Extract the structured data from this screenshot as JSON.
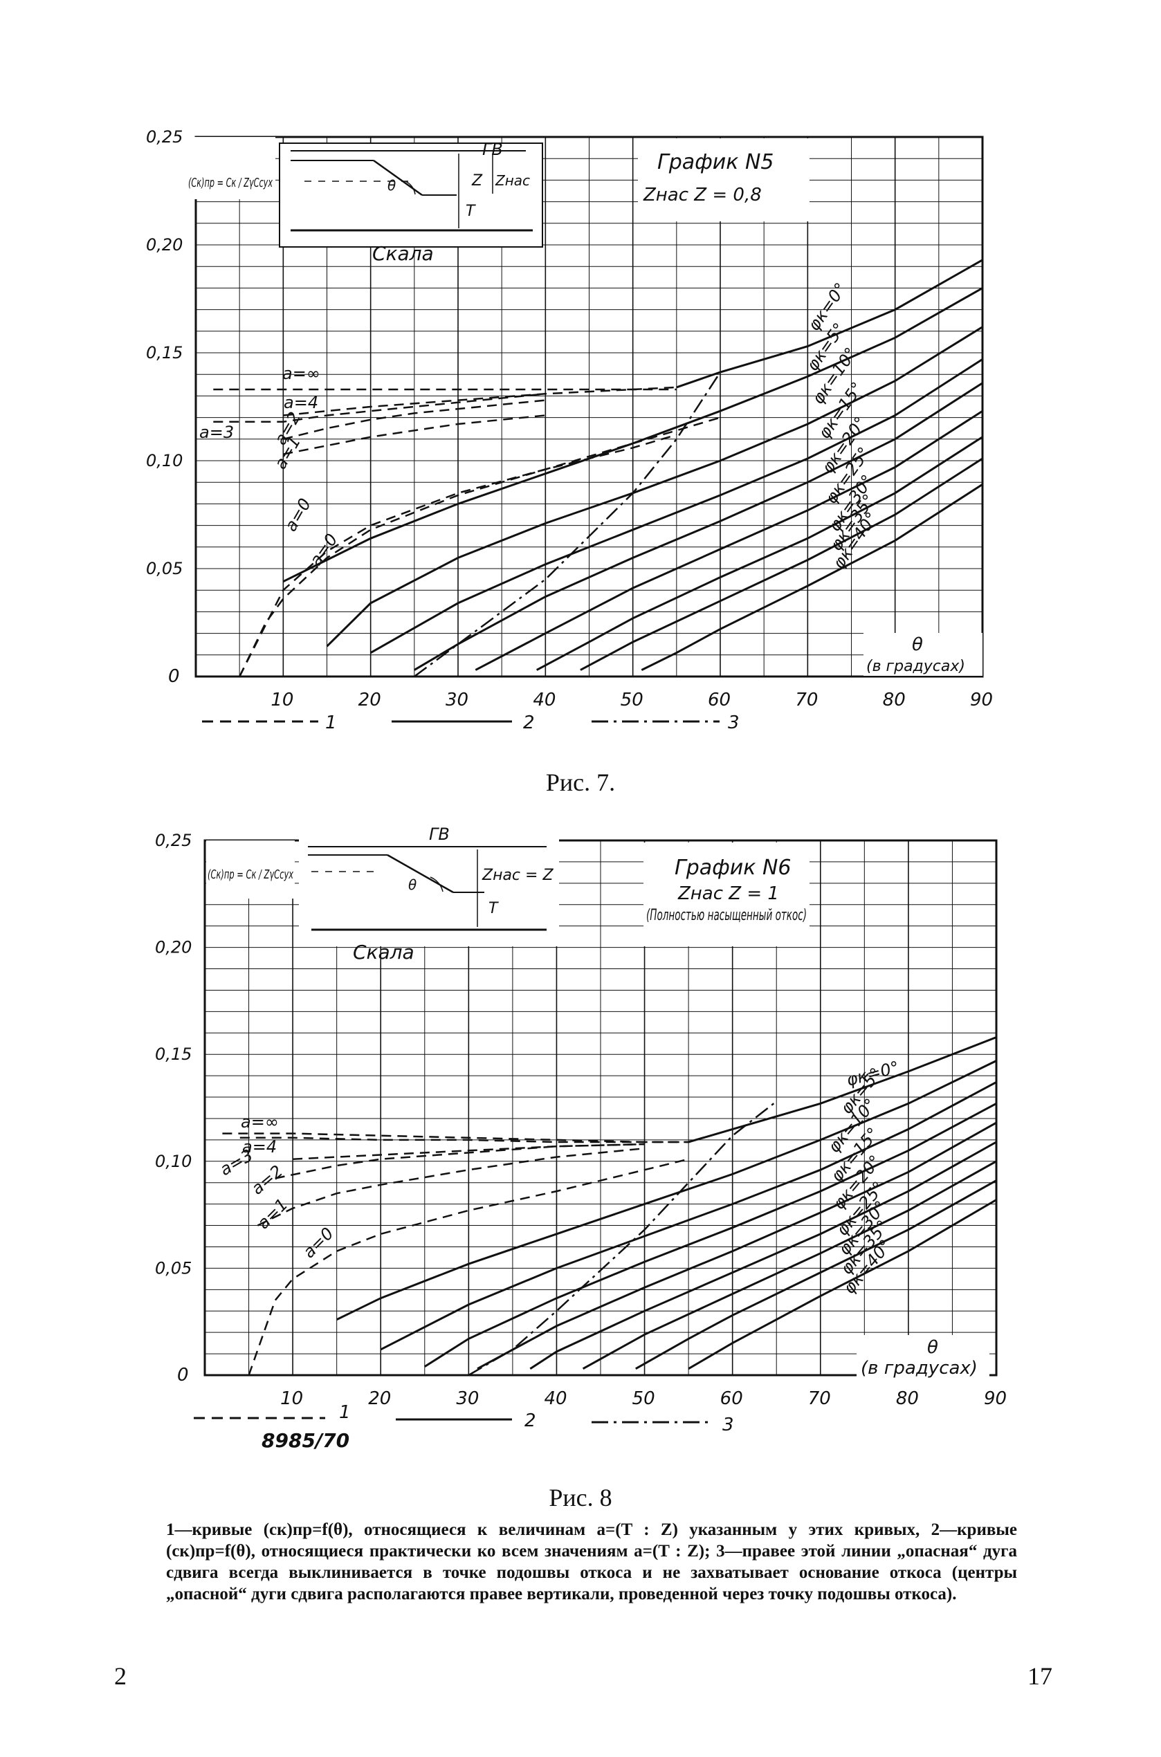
{
  "charts_meta": [
    {
      "caption": "Рис. 7.",
      "title": "График N5",
      "subtitle": "Zнас  Z = 0,8",
      "note": "",
      "ylabel": "(Cк)пр = Cк / ZγCсух",
      "xlabel_top": "θ",
      "xlabel_bottom": "(в градусах)",
      "inset_label": "Скала",
      "inset_marks": [
        "ГВ",
        "Z",
        "Zнас",
        "T",
        "θ"
      ]
    },
    {
      "caption": "Рис. 8",
      "title": "График N6",
      "subtitle": "Zнас  Z = 1",
      "note": "(Полностью насыщенный откос)",
      "ylabel": "(Cк)пр = Cк / ZγCсух",
      "xlabel_top": "θ",
      "xlabel_bottom": "(в градусах)",
      "inset_label": "Скала",
      "inset_marks": [
        "ГВ",
        "Zнас = Z",
        "T",
        "θ"
      ]
    }
  ],
  "legend": [
    {
      "num": "1",
      "style": "dashed"
    },
    {
      "num": "2",
      "style": "solid"
    },
    {
      "num": "3",
      "style": "dashdot"
    }
  ],
  "stamp": "8985/70",
  "caption_text": "1—кривые (cк)пр=f(θ), относящиеся к величинам a=(T : Z) указанным у этих кривых, 2—кривые (cк)пр=f(θ), относящиеся практически ко всем значениям a=(T : Z); 3—правее этой линии „опасная“ дуга сдвига всегда выклинивается в точке подошвы откоса и не захватывает основание откоса (центры „опасной“ дуги сдвига располагаются правее вертикали, проведенной через точку подошвы откоса).",
  "page_left": "2",
  "page_right": "17",
  "colors": {
    "ink": "#111111",
    "paper": "#ffffff"
  },
  "chart_data": [
    {
      "type": "line",
      "title": "График N5",
      "xlim": [
        0,
        90
      ],
      "ylim": [
        0,
        0.25
      ],
      "xticks": [
        10,
        20,
        30,
        40,
        50,
        60,
        70,
        80,
        90
      ],
      "xtick_labels": [
        "10",
        "20",
        "30",
        "40",
        "50",
        "60",
        "70",
        "80",
        "90"
      ],
      "yticks": [
        0,
        0.05,
        0.1,
        0.15,
        0.2,
        0.25
      ],
      "ytick_labels": [
        "0",
        "0,05",
        "0,10",
        "0,15",
        "0,20",
        "0,25"
      ],
      "grid": true,
      "series": [
        {
          "name": "a=∞",
          "kind": "dashed",
          "x": [
            2,
            10,
            20,
            30,
            40,
            50,
            55
          ],
          "y": [
            0.133,
            0.133,
            0.133,
            0.133,
            0.133,
            0.133,
            0.133
          ]
        },
        {
          "name": "a=4",
          "kind": "dashed",
          "x": [
            10,
            15,
            20,
            30,
            40,
            50,
            55
          ],
          "y": [
            0.121,
            0.123,
            0.125,
            0.128,
            0.131,
            0.133,
            0.134
          ]
        },
        {
          "name": "a=3",
          "kind": "dashed",
          "x": [
            2,
            6,
            10,
            15,
            20,
            30,
            40
          ],
          "y": [
            0.118,
            0.118,
            0.118,
            0.121,
            0.123,
            0.127,
            0.131
          ]
        },
        {
          "name": "a=2",
          "kind": "dashed",
          "x": [
            10,
            15,
            20,
            25,
            30,
            40
          ],
          "y": [
            0.11,
            0.115,
            0.119,
            0.122,
            0.124,
            0.128
          ]
        },
        {
          "name": "a=1",
          "kind": "dashed",
          "x": [
            10,
            15,
            20,
            25,
            30,
            40
          ],
          "y": [
            0.103,
            0.107,
            0.111,
            0.114,
            0.117,
            0.121
          ]
        },
        {
          "name": "a=0",
          "kind": "dashed",
          "x": [
            5,
            10,
            15,
            20,
            30,
            40,
            50,
            55
          ],
          "y": [
            0.0,
            0.04,
            0.058,
            0.07,
            0.085,
            0.096,
            0.106,
            0.112
          ]
        },
        {
          "name": "a=0 (φ=0)",
          "kind": "dashed",
          "x": [
            5,
            8,
            10,
            15,
            20,
            30,
            40,
            50,
            60
          ],
          "y": [
            0.0,
            0.025,
            0.036,
            0.055,
            0.068,
            0.084,
            0.096,
            0.108,
            0.12
          ]
        },
        {
          "name": "φк=0°",
          "kind": "solid",
          "x": [
            55,
            60,
            70,
            80,
            90
          ],
          "y": [
            0.134,
            0.141,
            0.153,
            0.17,
            0.193
          ]
        },
        {
          "name": "φк=5°",
          "kind": "solid",
          "x": [
            10,
            15,
            20,
            30,
            40,
            50,
            60,
            70,
            80,
            90
          ],
          "y": [
            0.044,
            0.054,
            0.064,
            0.08,
            0.094,
            0.108,
            0.123,
            0.139,
            0.157,
            0.18
          ]
        },
        {
          "name": "φк=10°",
          "kind": "solid",
          "x": [
            15,
            20,
            30,
            40,
            50,
            60,
            70,
            80,
            90
          ],
          "y": [
            0.014,
            0.034,
            0.055,
            0.071,
            0.085,
            0.1,
            0.117,
            0.137,
            0.162
          ]
        },
        {
          "name": "φк=15°",
          "kind": "solid",
          "x": [
            20,
            30,
            40,
            50,
            60,
            70,
            80,
            90
          ],
          "y": [
            0.011,
            0.034,
            0.052,
            0.068,
            0.084,
            0.101,
            0.121,
            0.147
          ]
        },
        {
          "name": "φк=20°",
          "kind": "solid",
          "x": [
            25,
            30,
            40,
            50,
            60,
            70,
            80,
            90
          ],
          "y": [
            0.003,
            0.015,
            0.037,
            0.055,
            0.072,
            0.09,
            0.11,
            0.136
          ]
        },
        {
          "name": "φк=25°",
          "kind": "solid",
          "x": [
            32,
            40,
            50,
            60,
            70,
            80,
            90
          ],
          "y": [
            0.003,
            0.02,
            0.041,
            0.059,
            0.077,
            0.097,
            0.123
          ]
        },
        {
          "name": "φк=30°",
          "kind": "solid",
          "x": [
            39,
            45,
            50,
            60,
            70,
            80,
            90
          ],
          "y": [
            0.003,
            0.016,
            0.027,
            0.046,
            0.064,
            0.085,
            0.111
          ]
        },
        {
          "name": "φк=35°",
          "kind": "solid",
          "x": [
            44,
            50,
            60,
            70,
            80,
            90
          ],
          "y": [
            0.003,
            0.016,
            0.035,
            0.054,
            0.075,
            0.101
          ]
        },
        {
          "name": "φк=40°",
          "kind": "solid",
          "x": [
            51,
            55,
            60,
            70,
            80,
            90
          ],
          "y": [
            0.003,
            0.011,
            0.022,
            0.042,
            0.063,
            0.089
          ]
        },
        {
          "name": "3",
          "kind": "dashdot",
          "x": [
            25,
            30,
            40,
            50,
            55,
            60
          ],
          "y": [
            0.0,
            0.015,
            0.045,
            0.085,
            0.11,
            0.141
          ]
        }
      ]
    },
    {
      "type": "line",
      "title": "График N6",
      "xlim": [
        0,
        90
      ],
      "ylim": [
        0,
        0.25
      ],
      "xticks": [
        10,
        20,
        30,
        40,
        50,
        60,
        70,
        80,
        90
      ],
      "xtick_labels": [
        "10",
        "20",
        "30",
        "40",
        "50",
        "60",
        "70",
        "80",
        "90"
      ],
      "yticks": [
        0,
        0.05,
        0.1,
        0.15,
        0.2,
        0.25
      ],
      "ytick_labels": [
        "0",
        "0,05",
        "0,10",
        "0,15",
        "0,20",
        "0,25"
      ],
      "grid": true,
      "series": [
        {
          "name": "a=∞",
          "kind": "dashed",
          "x": [
            2,
            10,
            20,
            30,
            40,
            50,
            55
          ],
          "y": [
            0.113,
            0.113,
            0.112,
            0.111,
            0.11,
            0.109,
            0.109
          ]
        },
        {
          "name": "a=4",
          "kind": "dashed",
          "x": [
            4,
            10,
            20,
            30,
            40,
            50,
            55
          ],
          "y": [
            0.111,
            0.111,
            0.11,
            0.11,
            0.109,
            0.109,
            0.109
          ]
        },
        {
          "name": "a=3",
          "kind": "dashed",
          "x": [
            10,
            15,
            20,
            30,
            40,
            50
          ],
          "y": [
            0.101,
            0.102,
            0.103,
            0.105,
            0.107,
            0.108
          ]
        },
        {
          "name": "a=2",
          "kind": "dashed",
          "x": [
            8,
            15,
            20,
            30,
            40,
            50
          ],
          "y": [
            0.092,
            0.098,
            0.101,
            0.104,
            0.107,
            0.108
          ]
        },
        {
          "name": "a=1",
          "kind": "dashed",
          "x": [
            6,
            10,
            15,
            20,
            30,
            40,
            50
          ],
          "y": [
            0.07,
            0.078,
            0.085,
            0.089,
            0.096,
            0.102,
            0.106
          ]
        },
        {
          "name": "a=0",
          "kind": "dashed",
          "x": [
            5,
            8,
            10,
            15,
            20,
            30,
            40,
            50,
            55
          ],
          "y": [
            0.0,
            0.035,
            0.045,
            0.058,
            0.066,
            0.077,
            0.086,
            0.096,
            0.101
          ]
        },
        {
          "name": "φк=0°",
          "kind": "solid",
          "x": [
            55,
            60,
            70,
            80,
            90
          ],
          "y": [
            0.109,
            0.115,
            0.127,
            0.142,
            0.158
          ]
        },
        {
          "name": "φк=5°",
          "kind": "solid",
          "x": [
            15,
            20,
            30,
            40,
            50,
            60,
            70,
            80,
            90
          ],
          "y": [
            0.026,
            0.036,
            0.052,
            0.066,
            0.08,
            0.094,
            0.11,
            0.127,
            0.147
          ]
        },
        {
          "name": "φк=10°",
          "kind": "solid",
          "x": [
            20,
            30,
            40,
            50,
            60,
            70,
            80,
            90
          ],
          "y": [
            0.012,
            0.033,
            0.05,
            0.065,
            0.08,
            0.096,
            0.115,
            0.137
          ]
        },
        {
          "name": "φк=15°",
          "kind": "solid",
          "x": [
            25,
            30,
            40,
            50,
            60,
            70,
            80,
            90
          ],
          "y": [
            0.004,
            0.017,
            0.036,
            0.053,
            0.069,
            0.086,
            0.105,
            0.127
          ]
        },
        {
          "name": "φк=20°",
          "kind": "solid",
          "x": [
            31,
            40,
            50,
            60,
            70,
            80,
            90
          ],
          "y": [
            0.003,
            0.023,
            0.041,
            0.058,
            0.076,
            0.095,
            0.118
          ]
        },
        {
          "name": "φк=25°",
          "kind": "solid",
          "x": [
            37,
            40,
            50,
            60,
            70,
            80,
            90
          ],
          "y": [
            0.003,
            0.011,
            0.03,
            0.048,
            0.066,
            0.086,
            0.109
          ]
        },
        {
          "name": "φк=30°",
          "kind": "solid",
          "x": [
            43,
            50,
            60,
            70,
            80,
            90
          ],
          "y": [
            0.003,
            0.019,
            0.038,
            0.057,
            0.077,
            0.1
          ]
        },
        {
          "name": "φк=35°",
          "kind": "solid",
          "x": [
            49,
            55,
            60,
            70,
            80,
            90
          ],
          "y": [
            0.003,
            0.017,
            0.028,
            0.048,
            0.068,
            0.091
          ]
        },
        {
          "name": "φк=40°",
          "kind": "solid",
          "x": [
            55,
            60,
            70,
            80,
            90
          ],
          "y": [
            0.003,
            0.015,
            0.037,
            0.058,
            0.082
          ]
        },
        {
          "name": "3",
          "kind": "dashdot",
          "x": [
            30,
            35,
            40,
            50,
            60,
            65
          ],
          "y": [
            0.0,
            0.012,
            0.03,
            0.068,
            0.112,
            0.128
          ]
        }
      ]
    }
  ]
}
